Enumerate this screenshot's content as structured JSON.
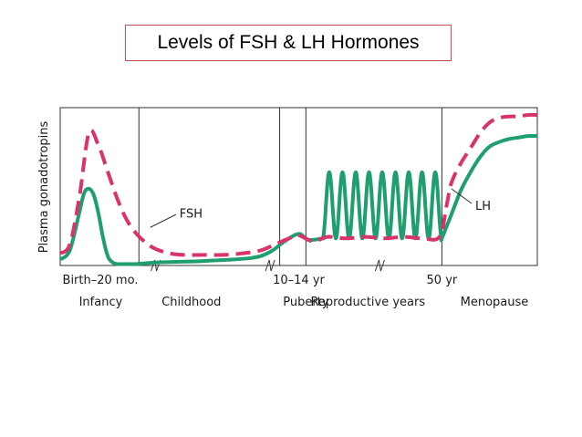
{
  "title": "Levels of FSH & LH Hormones",
  "colors": {
    "fsh": "#d8336a",
    "lh": "#1f9e6e",
    "axis": "#333333"
  },
  "chart_data": {
    "type": "line",
    "ylabel": "Plasma gonadotropins",
    "xlim": [
      0,
      100
    ],
    "ylim": [
      0,
      100
    ],
    "grid": false,
    "x_tick_labels": [
      {
        "x": 0,
        "text": "Birth–20 mo."
      },
      {
        "x": 50,
        "text": "10–14 yr"
      },
      {
        "x": 80,
        "text": "50 yr"
      }
    ],
    "period_labels": [
      {
        "x": 8.5,
        "text": "Infancy"
      },
      {
        "x": 27.5,
        "text": "Childhood"
      },
      {
        "x": 51.5,
        "text": "Puberty"
      },
      {
        "x": 64.5,
        "text": "Reproductive years"
      },
      {
        "x": 91,
        "text": "Menopause"
      }
    ],
    "vertical_lines": [
      16.5,
      46,
      51.5,
      80
    ],
    "axis_breaks": [
      20,
      44,
      67
    ],
    "series": [
      {
        "name": "FSH",
        "style": "dashed",
        "color": "#d8336a",
        "label_at": {
          "x": 25,
          "y": 35
        },
        "x": [
          0,
          2,
          4,
          6,
          8,
          10,
          12,
          14,
          16,
          18,
          20,
          23,
          26,
          30,
          34,
          38,
          42,
          45,
          48,
          50,
          53,
          56,
          60,
          64,
          68,
          72,
          76,
          79.5,
          81,
          82,
          84,
          86,
          88,
          90,
          92,
          94,
          96,
          98,
          100
        ],
        "y": [
          8,
          14,
          45,
          88,
          80,
          62,
          44,
          30,
          21,
          15,
          11,
          8,
          7,
          7,
          7,
          8,
          10,
          14,
          18,
          20,
          16,
          19,
          18,
          19,
          18,
          19,
          18,
          19,
          40,
          55,
          68,
          78,
          88,
          95,
          98,
          99,
          99,
          100,
          100
        ]
      },
      {
        "name": "LH",
        "style": "solid",
        "color": "#1f9e6e",
        "label_at": {
          "x": 87,
          "y": 40
        },
        "x": [
          0,
          2,
          4,
          5,
          6,
          7,
          8,
          9,
          10,
          11,
          12,
          14,
          16,
          20,
          30,
          40,
          44,
          47,
          50,
          52,
          55,
          80,
          82,
          84,
          86,
          88,
          90,
          92,
          94,
          96,
          98,
          100
        ],
        "y": [
          4,
          10,
          35,
          48,
          51,
          47,
          35,
          18,
          6,
          2,
          1,
          1,
          1,
          2,
          3,
          5,
          9,
          16,
          21,
          17,
          18,
          18,
          34,
          50,
          62,
          72,
          79,
          82,
          84,
          85,
          86,
          86
        ],
        "oscillation": {
          "x_start": 55,
          "x_end": 80,
          "cycles": 9,
          "low": 18,
          "high": 62
        }
      }
    ]
  }
}
